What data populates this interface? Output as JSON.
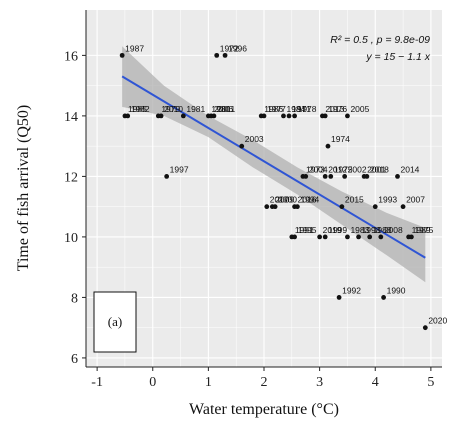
{
  "chart_data": {
    "type": "scatter",
    "title": "",
    "xlabel": "Water temperature (°C)",
    "ylabel": "Time of fish arrival (Q50)",
    "xlim": [
      -1.2,
      5.2
    ],
    "ylim": [
      5.7,
      17.5
    ],
    "x_ticks": [
      -1,
      0,
      1,
      2,
      3,
      4,
      5
    ],
    "x_tick_labels": [
      "-1",
      "0",
      "1",
      "2",
      "3",
      "4",
      "5"
    ],
    "y_ticks": [
      6,
      8,
      10,
      12,
      14,
      16
    ],
    "y_tick_labels": [
      "6",
      "8",
      "10",
      "12",
      "14",
      "16"
    ],
    "grid": true,
    "background": "#ebebeb",
    "annotations": {
      "stats_line_1": "R² = 0.5 , p = 9.8e-09",
      "stats_line_2": "y = 15 − 1.1 x",
      "panel_label": "(a)"
    },
    "regression": {
      "intercept": 14.7,
      "slope": -1.1,
      "x_range": [
        -0.55,
        4.9
      ],
      "color": "#2f55d4"
    },
    "confidence_band": {
      "x": [
        -0.55,
        0.2,
        1.0,
        1.8,
        2.6,
        3.4,
        4.2,
        4.9
      ],
      "upper": [
        16.3,
        15.0,
        14.0,
        13.2,
        12.3,
        11.5,
        10.8,
        10.3
      ],
      "lower": [
        14.3,
        14.0,
        13.3,
        12.3,
        11.4,
        10.4,
        9.4,
        8.5
      ],
      "color": "#b0b0b0"
    },
    "points": [
      {
        "year": "1987",
        "x": -0.55,
        "y": 16
      },
      {
        "year": "1972",
        "x": 1.15,
        "y": 16
      },
      {
        "year": "1996",
        "x": 1.3,
        "y": 16
      },
      {
        "year": "1985",
        "x": -0.5,
        "y": 14
      },
      {
        "year": "1982",
        "x": -0.45,
        "y": 14
      },
      {
        "year": "1979",
        "x": 0.1,
        "y": 14
      },
      {
        "year": "2010",
        "x": 0.15,
        "y": 14
      },
      {
        "year": "1981",
        "x": 0.55,
        "y": 14
      },
      {
        "year": "2006",
        "x": 1.05,
        "y": 14
      },
      {
        "year": "2011",
        "x": 1.1,
        "y": 14
      },
      {
        "year": "1980",
        "x": 1.0,
        "y": 14
      },
      {
        "year": "1986",
        "x": 1.95,
        "y": 14
      },
      {
        "year": "1977",
        "x": 2.0,
        "y": 14
      },
      {
        "year": "1971",
        "x": 2.45,
        "y": 14
      },
      {
        "year": "1984",
        "x": 2.35,
        "y": 14
      },
      {
        "year": "1978",
        "x": 2.55,
        "y": 14
      },
      {
        "year": "2013",
        "x": 3.05,
        "y": 14
      },
      {
        "year": "1976",
        "x": 3.1,
        "y": 14
      },
      {
        "year": "2005",
        "x": 3.5,
        "y": 14
      },
      {
        "year": "2003",
        "x": 1.6,
        "y": 13
      },
      {
        "year": "1974",
        "x": 3.15,
        "y": 13
      },
      {
        "year": "1997",
        "x": 0.25,
        "y": 12
      },
      {
        "year": "1973",
        "x": 2.7,
        "y": 12
      },
      {
        "year": "2004",
        "x": 2.75,
        "y": 12
      },
      {
        "year": "2012",
        "x": 3.1,
        "y": 12
      },
      {
        "year": "1975",
        "x": 3.2,
        "y": 12
      },
      {
        "year": "2002",
        "x": 3.45,
        "y": 12
      },
      {
        "year": "2001",
        "x": 3.8,
        "y": 12
      },
      {
        "year": "2018",
        "x": 3.85,
        "y": 12
      },
      {
        "year": "2014",
        "x": 4.4,
        "y": 12
      },
      {
        "year": "2009",
        "x": 2.15,
        "y": 11
      },
      {
        "year": "2017",
        "x": 2.05,
        "y": 11
      },
      {
        "year": "2000",
        "x": 2.2,
        "y": 11
      },
      {
        "year": "2016",
        "x": 2.55,
        "y": 11
      },
      {
        "year": "1994",
        "x": 2.6,
        "y": 11
      },
      {
        "year": "2015",
        "x": 3.4,
        "y": 11
      },
      {
        "year": "1993",
        "x": 4.0,
        "y": 11
      },
      {
        "year": "2007",
        "x": 4.5,
        "y": 11
      },
      {
        "year": "1991",
        "x": 2.5,
        "y": 10
      },
      {
        "year": "1995",
        "x": 2.55,
        "y": 10
      },
      {
        "year": "2019",
        "x": 3.0,
        "y": 10
      },
      {
        "year": "1999",
        "x": 3.1,
        "y": 10
      },
      {
        "year": "1983",
        "x": 3.5,
        "y": 10
      },
      {
        "year": "1998",
        "x": 3.7,
        "y": 10
      },
      {
        "year": "1988",
        "x": 3.9,
        "y": 10
      },
      {
        "year": "2008",
        "x": 4.1,
        "y": 10
      },
      {
        "year": "1989",
        "x": 4.6,
        "y": 10
      },
      {
        "year": "1975",
        "x": 4.65,
        "y": 10
      },
      {
        "year": "1992",
        "x": 3.35,
        "y": 8
      },
      {
        "year": "1990",
        "x": 4.15,
        "y": 8
      },
      {
        "year": "2020",
        "x": 4.9,
        "y": 7
      }
    ]
  }
}
